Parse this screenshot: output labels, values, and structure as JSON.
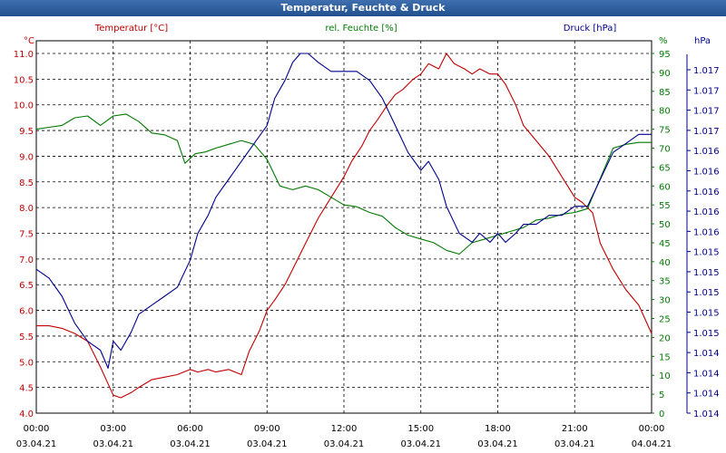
{
  "window": {
    "title": "Temperatur, Feuchte & Druck"
  },
  "chart_data": {
    "type": "line",
    "title": "Temperatur, Feuchte & Druck",
    "x_ticks": [
      {
        "time": "00:00",
        "date": "03.04.21"
      },
      {
        "time": "03:00",
        "date": "03.04.21"
      },
      {
        "time": "06:00",
        "date": "03.04.21"
      },
      {
        "time": "09:00",
        "date": "03.04.21"
      },
      {
        "time": "12:00",
        "date": "03.04.21"
      },
      {
        "time": "15:00",
        "date": "03.04.21"
      },
      {
        "time": "18:00",
        "date": "03.04.21"
      },
      {
        "time": "21:00",
        "date": "03.04.21"
      },
      {
        "time": "00:00",
        "date": "04.04.21"
      }
    ],
    "xlim_hours": [
      0,
      24
    ],
    "grid": true,
    "axes": {
      "temperature": {
        "label": "Temperatur [°C]",
        "unit": "°C",
        "color": "#c00000",
        "range": [
          4.0,
          11.0
        ],
        "ticks": [
          "4.0",
          "4.5",
          "5.0",
          "5.5",
          "6.0",
          "6.5",
          "7.0",
          "7.5",
          "8.0",
          "8.5",
          "9.0",
          "9.5",
          "10.0",
          "10.5",
          "11.0"
        ]
      },
      "humidity": {
        "label": "rel. Feuchte [%]",
        "unit": "%",
        "color": "#007a00",
        "range": [
          0,
          95
        ],
        "ticks": [
          "0",
          "5",
          "10",
          "15",
          "20",
          "25",
          "30",
          "35",
          "40",
          "45",
          "50",
          "55",
          "60",
          "65",
          "70",
          "75",
          "80",
          "85",
          "90",
          "95"
        ]
      },
      "pressure": {
        "label": "Druck [hPa]",
        "unit": "hPa",
        "color": "#00008b",
        "range": [
          1.0135,
          1.0175
        ],
        "ticks": [
          "1.014",
          "1.014",
          "1.014",
          "1.014",
          "1.015",
          "1.015",
          "1.015",
          "1.015",
          "1.015",
          "1.016",
          "1.016",
          "1.016",
          "1.016",
          "1.016",
          "1.017",
          "1.017",
          "1.017",
          "1.017"
        ]
      }
    },
    "series": [
      {
        "name": "Temperatur [°C]",
        "axis": "temperature",
        "color": "#c00000",
        "x": [
          0,
          0.5,
          1,
          1.5,
          2,
          2.5,
          3,
          3.3,
          3.7,
          4,
          4.5,
          5,
          5.5,
          6,
          6.3,
          6.7,
          7,
          7.5,
          8,
          8.3,
          8.7,
          9,
          9.3,
          9.7,
          10,
          10.5,
          11,
          11.5,
          12,
          12.3,
          12.7,
          13,
          13.3,
          13.7,
          14,
          14.3,
          14.7,
          15,
          15.3,
          15.7,
          16,
          16.3,
          16.7,
          17,
          17.3,
          17.7,
          18,
          18.3,
          18.7,
          19,
          19.5,
          20,
          20.5,
          21,
          21.3,
          21.7,
          22,
          22.5,
          23,
          23.5,
          24
        ],
        "values": [
          5.7,
          5.7,
          5.65,
          5.55,
          5.4,
          4.9,
          4.35,
          4.3,
          4.4,
          4.5,
          4.65,
          4.7,
          4.75,
          4.85,
          4.8,
          4.85,
          4.8,
          4.85,
          4.75,
          5.2,
          5.6,
          6.0,
          6.2,
          6.5,
          6.8,
          7.3,
          7.8,
          8.2,
          8.6,
          8.9,
          9.2,
          9.5,
          9.7,
          10.0,
          10.2,
          10.3,
          10.5,
          10.6,
          10.8,
          10.7,
          11.0,
          10.8,
          10.7,
          10.6,
          10.7,
          10.6,
          10.6,
          10.4,
          10.0,
          9.6,
          9.3,
          9.0,
          8.6,
          8.2,
          8.1,
          7.9,
          7.3,
          6.8,
          6.4,
          6.1,
          5.55
        ]
      },
      {
        "name": "rel. Feuchte [%]",
        "axis": "humidity",
        "color": "#007a00",
        "x": [
          0,
          0.5,
          1,
          1.5,
          2,
          2.5,
          3,
          3.5,
          4,
          4.5,
          5,
          5.5,
          5.8,
          6.2,
          6.6,
          7,
          7.5,
          8,
          8.5,
          9,
          9.5,
          10,
          10.5,
          11,
          11.5,
          12,
          12.5,
          13,
          13.5,
          14,
          14.5,
          15,
          15.5,
          16,
          16.5,
          17,
          17.5,
          18,
          18.5,
          19,
          19.5,
          20,
          20.5,
          21,
          21.5,
          22,
          22.5,
          23,
          23.5,
          24
        ],
        "values": [
          75,
          75.5,
          76,
          78,
          78.5,
          76,
          78.5,
          79,
          77,
          74,
          73.5,
          72,
          66,
          68.5,
          69,
          70,
          71,
          72,
          71,
          67,
          60,
          59,
          60,
          59,
          57,
          55,
          54.5,
          53,
          52,
          49,
          47,
          46,
          45,
          43,
          42,
          45,
          46,
          47,
          48,
          49,
          51,
          51.5,
          52.5,
          53,
          54,
          62,
          70,
          71,
          71.5,
          71.5
        ]
      },
      {
        "name": "Druck [hPa]",
        "axis": "pressure",
        "color": "#00008b",
        "x": [
          0,
          0.5,
          1,
          1.5,
          2,
          2.5,
          2.8,
          3,
          3.3,
          3.7,
          4,
          4.5,
          5,
          5.5,
          6,
          6.3,
          6.7,
          7,
          7.5,
          8,
          8.5,
          9,
          9.3,
          9.7,
          10,
          10.3,
          10.6,
          11,
          11.5,
          12,
          12.5,
          13,
          13.5,
          14,
          14.5,
          15,
          15.3,
          15.7,
          16,
          16.5,
          17,
          17.3,
          17.7,
          18,
          18.3,
          18.7,
          19,
          19.5,
          20,
          20.5,
          21,
          21.5,
          22,
          22.5,
          23,
          23.5,
          24
        ],
        "values": [
          1.0151,
          1.015,
          1.0148,
          1.0145,
          1.0143,
          1.0142,
          1.014,
          1.0143,
          1.0142,
          1.0144,
          1.0146,
          1.0147,
          1.0148,
          1.0149,
          1.0152,
          1.0155,
          1.0157,
          1.0159,
          1.0161,
          1.0163,
          1.0165,
          1.0167,
          1.017,
          1.0172,
          1.0174,
          1.0175,
          1.0175,
          1.0174,
          1.0173,
          1.0173,
          1.0173,
          1.0172,
          1.017,
          1.0167,
          1.0164,
          1.0162,
          1.0163,
          1.0161,
          1.0158,
          1.0155,
          1.0154,
          1.0155,
          1.0154,
          1.0155,
          1.0154,
          1.0155,
          1.0156,
          1.0156,
          1.0157,
          1.0157,
          1.0158,
          1.0158,
          1.0161,
          1.0164,
          1.0165,
          1.0166,
          1.0166
        ]
      }
    ]
  }
}
